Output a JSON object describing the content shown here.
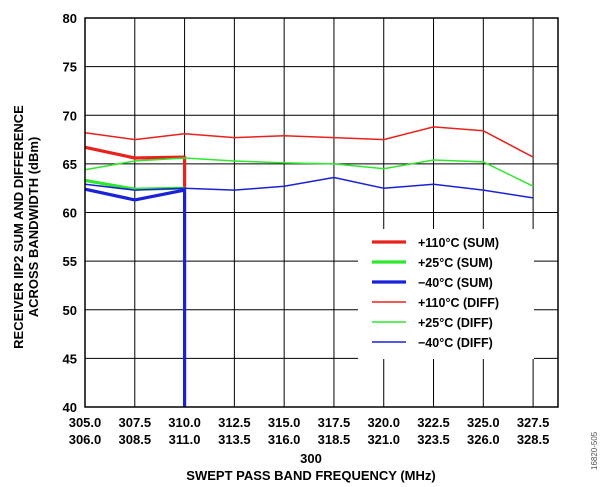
{
  "chart_data": {
    "type": "line",
    "xlabel": "SWEPT PASS BAND FREQUENCY (MHz)",
    "ylabel_lines": [
      "RECEIVER IIP2 SUM AND DIFFERENCE",
      "ACROSS BANDWIDTH (dBm)"
    ],
    "x_tick_labels_top": [
      "305.0",
      "307.5",
      "310.0",
      "312.5",
      "315.0",
      "317.5",
      "320.0",
      "322.5",
      "325.0",
      "327.5"
    ],
    "x_tick_labels_bottom": [
      "306.0",
      "308.5",
      "311.0",
      "313.5",
      "316.0",
      "318.5",
      "321.0",
      "323.5",
      "326.0",
      "328.5"
    ],
    "x_center_label": "300",
    "ylim": [
      40,
      80
    ],
    "y_ticks": [
      40,
      45,
      50,
      55,
      60,
      65,
      70,
      75,
      80
    ],
    "grid": true,
    "legend_position": "center-right",
    "figure_id": "16820-505",
    "series": [
      {
        "name": "+110°C (SUM)",
        "color": "#e8221c",
        "style": "thick",
        "points": [
          [
            0,
            66.7
          ],
          [
            1,
            65.6
          ],
          [
            2,
            65.7
          ],
          [
            2,
            62.4
          ]
        ]
      },
      {
        "name": "+25°C (SUM)",
        "color": "#2ee82e",
        "style": "thick",
        "points": [
          [
            0,
            63.3
          ],
          [
            1,
            62.4
          ],
          [
            2,
            62.5
          ]
        ]
      },
      {
        "name": "−40°C (SUM)",
        "color": "#1a22d8",
        "style": "thick",
        "points": [
          [
            0,
            62.4
          ],
          [
            1,
            61.3
          ],
          [
            2,
            62.3
          ],
          [
            2,
            40
          ]
        ]
      },
      {
        "name": "+110°C (DIFF)",
        "color": "#e8221c",
        "style": "thin",
        "points": [
          [
            0,
            68.2
          ],
          [
            1,
            67.5
          ],
          [
            2,
            68.1
          ],
          [
            3,
            67.7
          ],
          [
            4,
            67.9
          ],
          [
            5,
            67.7
          ],
          [
            6,
            67.5
          ],
          [
            7,
            68.8
          ],
          [
            8,
            68.4
          ],
          [
            9,
            65.7
          ]
        ]
      },
      {
        "name": "+25°C (DIFF)",
        "color": "#2ee82e",
        "style": "thin",
        "points": [
          [
            0,
            64.4
          ],
          [
            1,
            65.3
          ],
          [
            2,
            65.6
          ],
          [
            3,
            65.3
          ],
          [
            4,
            65.1
          ],
          [
            5,
            65.0
          ],
          [
            6,
            64.5
          ],
          [
            7,
            65.4
          ],
          [
            8,
            65.2
          ],
          [
            9,
            62.7
          ]
        ]
      },
      {
        "name": "−40°C (DIFF)",
        "color": "#1a22d8",
        "style": "thin",
        "points": [
          [
            0,
            62.9
          ],
          [
            1,
            62.3
          ],
          [
            2,
            62.5
          ],
          [
            3,
            62.3
          ],
          [
            4,
            62.7
          ],
          [
            5,
            63.6
          ],
          [
            6,
            62.5
          ],
          [
            7,
            62.9
          ],
          [
            8,
            62.3
          ],
          [
            9,
            61.5
          ]
        ]
      }
    ]
  }
}
